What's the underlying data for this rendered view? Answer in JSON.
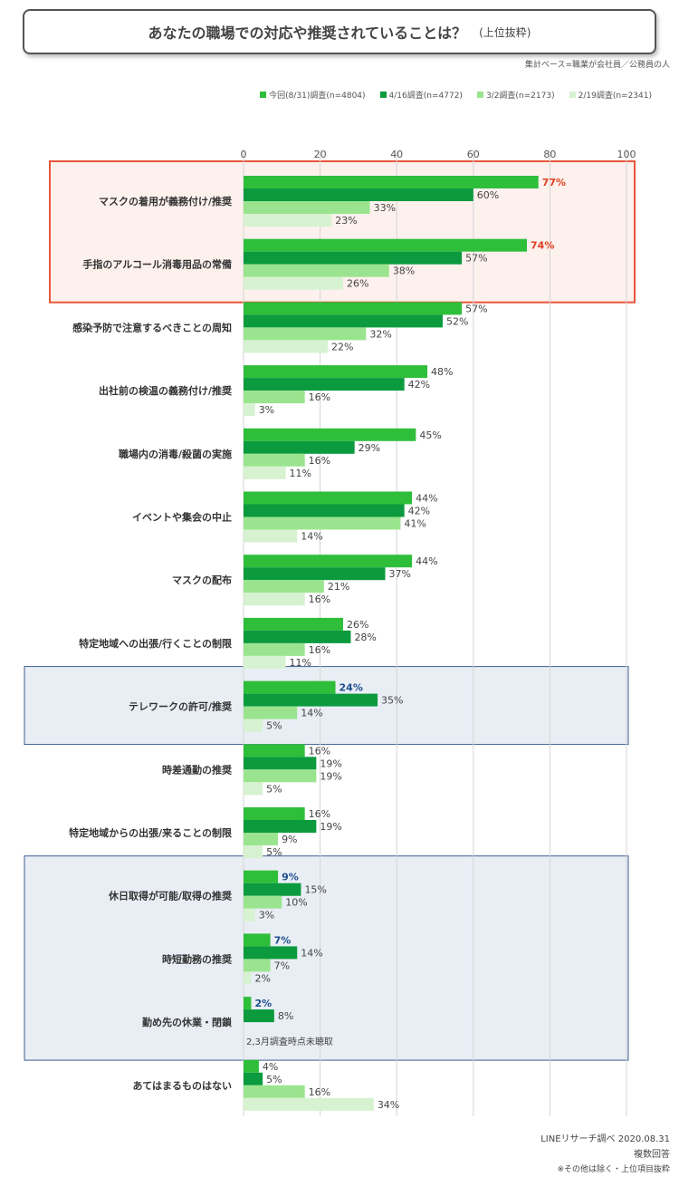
{
  "header": {
    "title": "あなたの職場での対応や推奨されていることは？",
    "subtitle": "(上位抜粋)",
    "base": "集計ベース=職業が会社員／公務員の人"
  },
  "footer": {
    "source": "LINEリサーチ調べ 2020.08.31",
    "note1": "複数回答",
    "note2": "※その他は除く・上位項目抜粋"
  },
  "chart_data": {
    "type": "bar",
    "orientation": "horizontal",
    "xlim": [
      0,
      100
    ],
    "ticks": [
      0,
      20,
      40,
      60,
      80,
      100
    ],
    "grid": true,
    "legend_position": "top-right",
    "series": [
      {
        "name": "今回(8/31)調査(n=4804)",
        "color": "#2fbe3a"
      },
      {
        "name": "4/16調査(n=4772)",
        "color": "#0b9a3e"
      },
      {
        "name": "3/2調査(n=2173)",
        "color": "#9be48f"
      },
      {
        "name": "2/19調査(n=2341)",
        "color": "#d6f2d0"
      }
    ],
    "categories": [
      {
        "label": "マスクの着用が義務付け/推奨",
        "values": [
          77,
          60,
          33,
          23
        ]
      },
      {
        "label": "手指のアルコール消毒用品の常備",
        "values": [
          74,
          57,
          38,
          26
        ]
      },
      {
        "label": "感染予防で注意するべきことの周知",
        "values": [
          57,
          52,
          32,
          22
        ]
      },
      {
        "label": "出社前の検温の義務付け/推奨",
        "values": [
          48,
          42,
          16,
          3
        ]
      },
      {
        "label": "職場内の消毒/殺菌の実施",
        "values": [
          45,
          29,
          16,
          11
        ]
      },
      {
        "label": "イベントや集会の中止",
        "values": [
          44,
          42,
          41,
          14
        ]
      },
      {
        "label": "マスクの配布",
        "values": [
          44,
          37,
          21,
          16
        ]
      },
      {
        "label": "特定地域への出張/行くことの制限",
        "values": [
          26,
          28,
          16,
          11
        ]
      },
      {
        "label": "テレワークの許可/推奨",
        "values": [
          24,
          35,
          14,
          5
        ]
      },
      {
        "label": "時差通勤の推奨",
        "values": [
          16,
          19,
          19,
          5
        ]
      },
      {
        "label": "特定地域からの出張/来ることの制限",
        "values": [
          16,
          19,
          9,
          5
        ]
      },
      {
        "label": "休日取得が可能/取得の推奨",
        "values": [
          9,
          15,
          10,
          3
        ]
      },
      {
        "label": "時短勤務の推奨",
        "values": [
          7,
          14,
          7,
          2
        ]
      },
      {
        "label": "勤め先の休業・閉鎖",
        "values": [
          2,
          8,
          null,
          null
        ],
        "note": "2,3月調査時点未聴取"
      },
      {
        "label": "あてはまるものはない",
        "values": [
          4,
          5,
          16,
          34
        ]
      }
    ],
    "highlights": [
      {
        "rows": [
          0,
          1
        ],
        "style": "red",
        "label_color": "#e0401f"
      },
      {
        "rows": [
          8
        ],
        "style": "blue",
        "label_color": "#1f4e8c"
      },
      {
        "rows": [
          11,
          12,
          13
        ],
        "style": "blue",
        "label_color": "#1f4e8c"
      }
    ]
  }
}
